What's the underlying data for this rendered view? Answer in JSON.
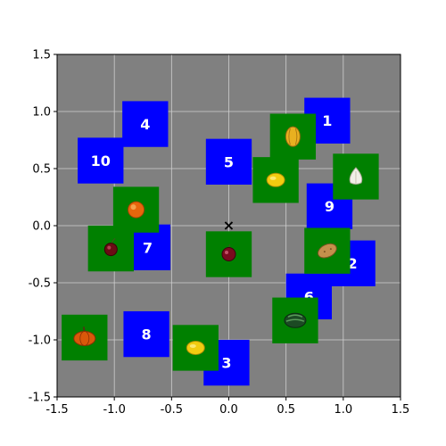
{
  "chart_data": {
    "type": "scatter",
    "title": "",
    "xlabel": "",
    "ylabel": "",
    "xlim": [
      -1.5,
      1.5
    ],
    "ylim": [
      -1.5,
      1.5
    ],
    "x_ticks": [
      "-1.5",
      "-1.0",
      "-0.5",
      "0.0",
      "0.5",
      "1.0",
      "1.5"
    ],
    "y_ticks": [
      "-1.5",
      "-1.0",
      "-0.5",
      "0.0",
      "0.5",
      "1.0",
      "1.5"
    ],
    "grid": true,
    "background_color": "#808080",
    "grid_color": "#cfcfcf",
    "target_color": "#0000ff",
    "object_color": "#008000",
    "marker": {
      "x": 0.0,
      "y": 0.0,
      "symbol": "×"
    },
    "targets": [
      {
        "label": "1",
        "x": 0.86,
        "y": 0.92
      },
      {
        "label": "2",
        "x": 1.08,
        "y": -0.33
      },
      {
        "label": "3",
        "x": -0.02,
        "y": -1.2
      },
      {
        "label": "4",
        "x": -0.73,
        "y": 0.89
      },
      {
        "label": "5",
        "x": 0.0,
        "y": 0.56
      },
      {
        "label": "6",
        "x": 0.7,
        "y": -0.62
      },
      {
        "label": "7",
        "x": -0.71,
        "y": -0.19
      },
      {
        "label": "8",
        "x": -0.72,
        "y": -0.95
      },
      {
        "label": "9",
        "x": 0.88,
        "y": 0.17
      },
      {
        "label": "10",
        "x": -1.12,
        "y": 0.57
      }
    ],
    "objects": [
      {
        "item": "banana",
        "x": 0.56,
        "y": 0.78
      },
      {
        "item": "garlic",
        "x": 1.11,
        "y": 0.43
      },
      {
        "item": "lemon",
        "x": 0.41,
        "y": 0.4
      },
      {
        "item": "orange",
        "x": -0.81,
        "y": 0.14
      },
      {
        "item": "cherry",
        "x": -1.03,
        "y": -0.2
      },
      {
        "item": "plum",
        "x": 0.0,
        "y": -0.25
      },
      {
        "item": "potato",
        "x": 0.86,
        "y": -0.22
      },
      {
        "item": "watermelon",
        "x": 0.58,
        "y": -0.83
      },
      {
        "item": "pumpkin",
        "x": -1.26,
        "y": -0.98
      },
      {
        "item": "lemon",
        "x": -0.29,
        "y": -1.07
      }
    ]
  }
}
